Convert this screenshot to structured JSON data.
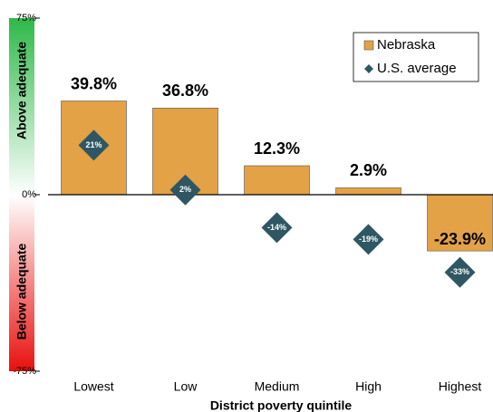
{
  "chart_data": {
    "type": "bar",
    "x_label": "District poverty quintile",
    "annotations": [
      "Above adequate",
      "Below adequate"
    ],
    "categories": [
      "Lowest",
      "Low",
      "Medium",
      "High",
      "Highest"
    ],
    "series": [
      {
        "name": "Nebraska",
        "color": "#e2a245",
        "marker": "bar",
        "values": [
          39.8,
          36.8,
          12.3,
          2.9,
          -23.9
        ],
        "value_labels": [
          "39.8%",
          "36.8%",
          "12.3%",
          "2.9%",
          "-23.9%"
        ]
      },
      {
        "name": "U.S. average",
        "color": "#2f5763",
        "marker": "diamond",
        "values": [
          21,
          2,
          -14,
          -19,
          -33
        ],
        "value_labels": [
          "21%",
          "2%",
          "-14%",
          "-19%",
          "-33%"
        ]
      }
    ],
    "ylim": [
      -75,
      75
    ],
    "yticks": [
      {
        "value": -75,
        "label": "-75%"
      },
      {
        "value": 0,
        "label": "0%"
      },
      {
        "value": 75,
        "label": "75%"
      }
    ],
    "legend": "upper right"
  }
}
